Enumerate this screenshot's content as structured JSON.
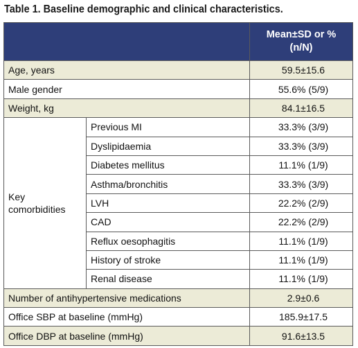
{
  "caption": "Table 1. Baseline demographic and clinical characteristics.",
  "header": {
    "value_line1": "Mean±SD or %",
    "value_line2": "(n/N)"
  },
  "rows_top": [
    {
      "label": "Age, years",
      "value": "59.5±15.6"
    },
    {
      "label": "Male gender",
      "value": "55.6% (5/9)"
    },
    {
      "label": "Weight, kg",
      "value": "84.1±16.5"
    }
  ],
  "comorbidities": {
    "group_line1": "Key",
    "group_line2": "comorbidities",
    "items": [
      {
        "label": "Previous MI",
        "value": "33.3% (3/9)"
      },
      {
        "label": "Dyslipidaemia",
        "value": "33.3% (3/9)"
      },
      {
        "label": "Diabetes mellitus",
        "value": "11.1% (1/9)"
      },
      {
        "label": "Asthma/bronchitis",
        "value": "33.3% (3/9)"
      },
      {
        "label": "LVH",
        "value": "22.2% (2/9)"
      },
      {
        "label": "CAD",
        "value": "22.2% (2/9)"
      },
      {
        "label": "Reflux oesophagitis",
        "value": "11.1% (1/9)"
      },
      {
        "label": "History of stroke",
        "value": "11.1% (1/9)"
      },
      {
        "label": "Renal disease",
        "value": "11.1% (1/9)"
      }
    ]
  },
  "rows_bottom": [
    {
      "label": "Number of antihypertensive medications",
      "value": "2.9±0.6"
    },
    {
      "label": "Office SBP at baseline (mmHg)",
      "value": "185.9±17.5"
    },
    {
      "label": "Office DBP at baseline (mmHg)",
      "value": "91.6±13.5"
    }
  ],
  "colors": {
    "header_bg": "#2e3e79",
    "shade_bg": "#ecebd7",
    "border": "#5a5a5a"
  }
}
